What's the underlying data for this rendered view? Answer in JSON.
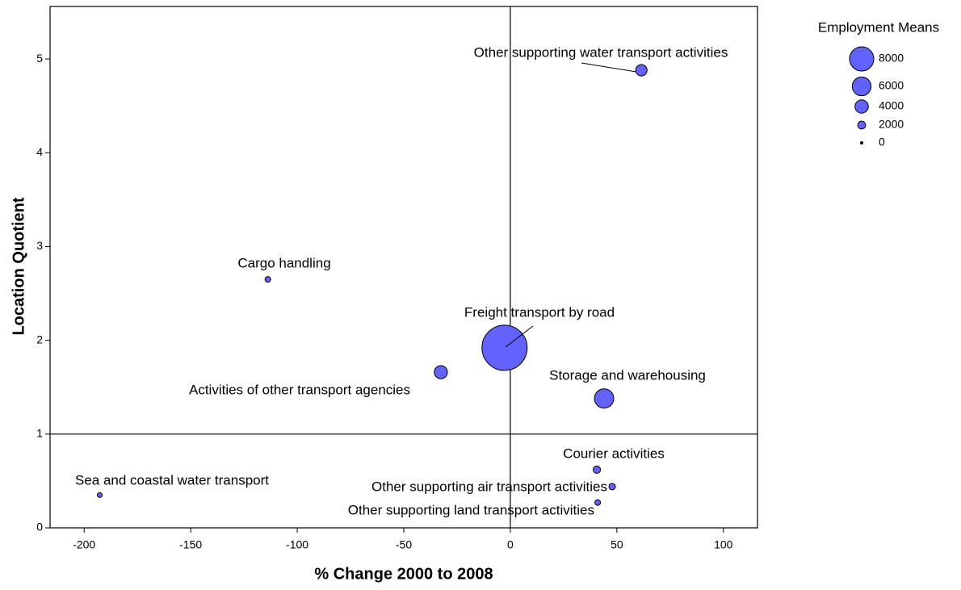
{
  "chart_data": {
    "type": "bubble",
    "xlabel": "% Change 2000 to 2008",
    "ylabel": "Location Quotient",
    "labels": [
      "Other supporting water transport activities",
      "Cargo handling",
      "Freight transport by road",
      "Activities of other transport agencies",
      "Storage and warehousing",
      "Courier activities",
      "Other supporting air transport activities",
      "Other supporting land transport activities",
      "Sea and coastal water transport"
    ],
    "x": [
      61.5,
      -113.8,
      -2.7,
      -32.6,
      44,
      40.6,
      47.8,
      41,
      -192.7
    ],
    "values": [
      4.88,
      2.65,
      1.92,
      1.66,
      1.38,
      0.62,
      0.44,
      0.27,
      0.35
    ],
    "sizes": [
      3300,
      1200,
      15700,
      3900,
      6200,
      1800,
      1500,
      1200,
      900
    ],
    "color": "#6262ff",
    "xlim": [
      -216,
      116
    ],
    "ylim": [
      0,
      5.56
    ],
    "xticks": [
      -200,
      -150,
      -100,
      -50,
      0,
      50,
      100
    ],
    "yticks": [
      0,
      1,
      2,
      3,
      4,
      5
    ],
    "reflines": {
      "x": 0,
      "y": 1
    },
    "legend": {
      "title": "Employment Means",
      "sizes": [
        8000,
        6000,
        4000,
        2000,
        0
      ]
    }
  }
}
